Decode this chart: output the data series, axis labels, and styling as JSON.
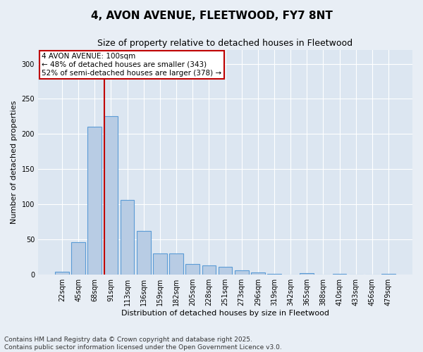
{
  "title_line1": "4, AVON AVENUE, FLEETWOOD, FY7 8NT",
  "title_line2": "Size of property relative to detached houses in Fleetwood",
  "xlabel": "Distribution of detached houses by size in Fleetwood",
  "ylabel": "Number of detached properties",
  "categories": [
    "22sqm",
    "45sqm",
    "68sqm",
    "91sqm",
    "113sqm",
    "136sqm",
    "159sqm",
    "182sqm",
    "205sqm",
    "228sqm",
    "251sqm",
    "273sqm",
    "296sqm",
    "319sqm",
    "342sqm",
    "365sqm",
    "388sqm",
    "410sqm",
    "433sqm",
    "456sqm",
    "479sqm"
  ],
  "values": [
    4,
    46,
    210,
    225,
    106,
    62,
    30,
    30,
    15,
    13,
    11,
    6,
    3,
    1,
    0,
    2,
    0,
    1,
    0,
    0,
    1
  ],
  "bar_color": "#b8cce4",
  "bar_edge_color": "#5b9bd5",
  "vline_x_index": 3,
  "vline_color": "#c00000",
  "annotation_box_text": "4 AVON AVENUE: 100sqm\n← 48% of detached houses are smaller (343)\n52% of semi-detached houses are larger (378) →",
  "annotation_box_color": "#c00000",
  "ylim": [
    0,
    320
  ],
  "yticks": [
    0,
    50,
    100,
    150,
    200,
    250,
    300
  ],
  "background_color": "#e8eef5",
  "plot_background": "#dce6f1",
  "grid_color": "#ffffff",
  "footer_line1": "Contains HM Land Registry data © Crown copyright and database right 2025.",
  "footer_line2": "Contains public sector information licensed under the Open Government Licence v3.0.",
  "title_fontsize": 11,
  "subtitle_fontsize": 9,
  "axis_label_fontsize": 8,
  "tick_fontsize": 7,
  "annotation_fontsize": 7.5,
  "footer_fontsize": 6.5
}
